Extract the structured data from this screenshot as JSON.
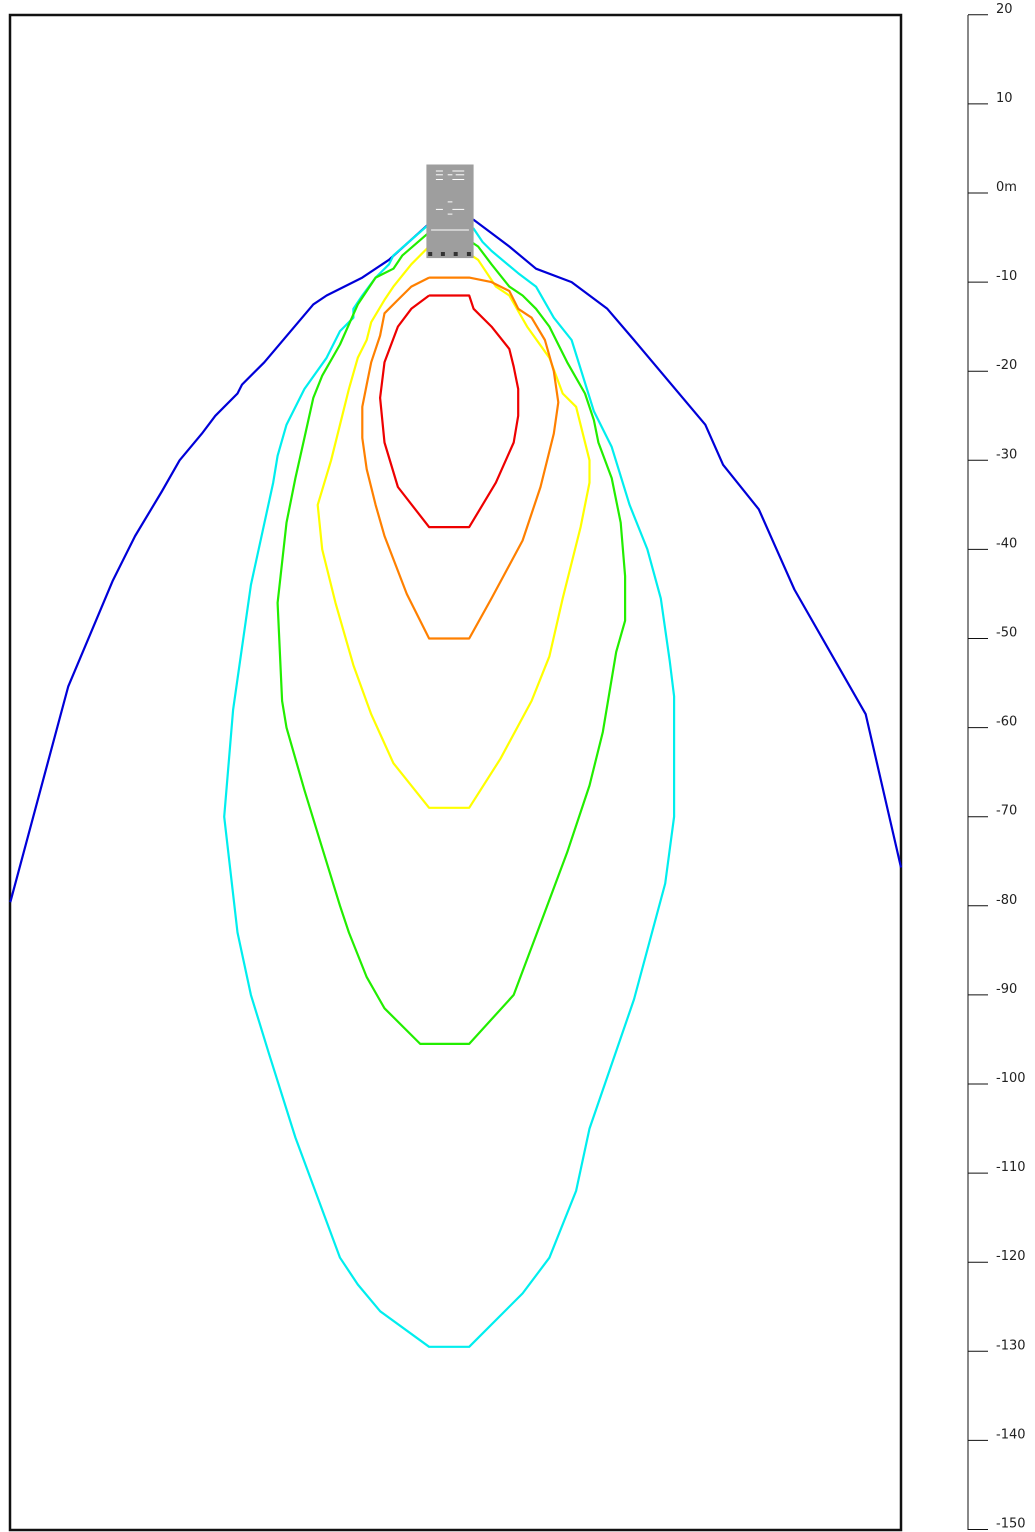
{
  "diagram": {
    "scale": {
      "unit": "m",
      "min": -150,
      "max": 20,
      "step": 10,
      "tick_labels": [
        "20",
        "10",
        "0m",
        "-10",
        "-20",
        "-30",
        "-40",
        "-50",
        "-60",
        "-70",
        "-80",
        "-90",
        "-100",
        "-110",
        "-120",
        "-130",
        "-140",
        "-150"
      ]
    },
    "frame": {
      "x_range_m": [
        -48,
        52
      ],
      "y_range_m": [
        -150,
        18.4
      ]
    },
    "source_icon": {
      "name": "vessel",
      "color": "#9e9e9e",
      "extent_x_m": [
        -1.3,
        4.0
      ],
      "extent_y_m": [
        -7.3,
        3.2
      ]
    },
    "contours": [
      {
        "id": "blue",
        "color": "#0000d8",
        "points_m": [
          [
            -48,
            -79.6
          ],
          [
            -41.5,
            -55.4
          ],
          [
            -36.5,
            -43.5
          ],
          [
            -34,
            -38.5
          ],
          [
            -31,
            -33.5
          ],
          [
            -29,
            -30
          ],
          [
            -26.5,
            -27
          ],
          [
            -25,
            -25
          ],
          [
            -22.5,
            -22.5
          ],
          [
            -22,
            -21.5
          ],
          [
            -19.5,
            -19
          ],
          [
            -14,
            -12.5
          ],
          [
            -12.5,
            -11.5
          ],
          [
            -8.5,
            -9.5
          ],
          [
            -5.5,
            -7.5
          ],
          [
            -0.5,
            -3
          ],
          [
            1.5,
            -3
          ],
          [
            4,
            -3
          ],
          [
            6,
            -4.5
          ],
          [
            8,
            -6
          ],
          [
            11,
            -8.5
          ],
          [
            15,
            -10
          ],
          [
            19,
            -13
          ],
          [
            22,
            -16.5
          ],
          [
            30,
            -26
          ],
          [
            32,
            -30.5
          ],
          [
            36,
            -35.5
          ],
          [
            38,
            -40
          ],
          [
            40,
            -44.5
          ],
          [
            48,
            -58.5
          ],
          [
            52,
            -75.7
          ]
        ]
      },
      {
        "id": "cyan",
        "color": "#00eeee",
        "points_m": [
          [
            -1,
            -3.5
          ],
          [
            -5,
            -7
          ],
          [
            -5.5,
            -8
          ],
          [
            -7,
            -9.5
          ],
          [
            -8.5,
            -11.5
          ],
          [
            -9.5,
            -13
          ],
          [
            -9.5,
            -14
          ],
          [
            -11,
            -15.5
          ],
          [
            -12.5,
            -18.5
          ],
          [
            -15,
            -22
          ],
          [
            -17,
            -26
          ],
          [
            -18,
            -29.5
          ],
          [
            -18.5,
            -32.5
          ],
          [
            -21,
            -44
          ],
          [
            -23,
            -58
          ],
          [
            -24,
            -70
          ],
          [
            -22.5,
            -83
          ],
          [
            -21,
            -90
          ],
          [
            -19,
            -96.5
          ],
          [
            -16,
            -106
          ],
          [
            -11,
            -119.5
          ],
          [
            -9,
            -122.5
          ],
          [
            -6.5,
            -125.5
          ],
          [
            -1,
            -129.5
          ],
          [
            3.5,
            -129.5
          ],
          [
            9.5,
            -123.5
          ],
          [
            12.5,
            -119.5
          ],
          [
            15.5,
            -112
          ],
          [
            17,
            -105
          ],
          [
            22,
            -90.5
          ],
          [
            25.5,
            -77.5
          ],
          [
            26.5,
            -70
          ],
          [
            26.5,
            -56.5
          ],
          [
            26,
            -52.5
          ],
          [
            25,
            -45.5
          ],
          [
            23.5,
            -40
          ],
          [
            21.5,
            -35
          ],
          [
            19.5,
            -28.5
          ],
          [
            17.5,
            -24.5
          ],
          [
            15,
            -16.5
          ],
          [
            13,
            -14
          ],
          [
            11,
            -10.5
          ],
          [
            9,
            -9
          ],
          [
            6,
            -6.5
          ],
          [
            5,
            -5.5
          ],
          [
            4,
            -4
          ],
          [
            1.5,
            -3.5
          ],
          [
            -1,
            -3.5
          ]
        ]
      },
      {
        "id": "green",
        "color": "#22ee00",
        "points_m": [
          [
            -0.5,
            -4
          ],
          [
            -4,
            -7
          ],
          [
            -5,
            -8.5
          ],
          [
            -7,
            -9.5
          ],
          [
            -9,
            -12.5
          ],
          [
            -11,
            -17
          ],
          [
            -13,
            -20.5
          ],
          [
            -14,
            -23
          ],
          [
            -15,
            -27.5
          ],
          [
            -16,
            -32
          ],
          [
            -17,
            -37
          ],
          [
            -18,
            -46
          ],
          [
            -17.5,
            -57
          ],
          [
            -17,
            -60
          ],
          [
            -15,
            -67
          ],
          [
            -13,
            -73.5
          ],
          [
            -11,
            -80
          ],
          [
            -10,
            -83
          ],
          [
            -8,
            -88
          ],
          [
            -6,
            -91.5
          ],
          [
            -2,
            -95.5
          ],
          [
            3.5,
            -95.5
          ],
          [
            8.5,
            -90
          ],
          [
            11.5,
            -82
          ],
          [
            14.5,
            -74
          ],
          [
            17,
            -66.5
          ],
          [
            18.5,
            -60.5
          ],
          [
            20,
            -51.5
          ],
          [
            21,
            -48
          ],
          [
            21,
            -43
          ],
          [
            20.5,
            -37
          ],
          [
            19.5,
            -32
          ],
          [
            18,
            -28
          ],
          [
            17.5,
            -25.5
          ],
          [
            16.5,
            -22.5
          ],
          [
            14.5,
            -19
          ],
          [
            13.5,
            -17
          ],
          [
            12.5,
            -15
          ],
          [
            11,
            -13
          ],
          [
            9.5,
            -11.5
          ],
          [
            8,
            -10.5
          ],
          [
            6,
            -8
          ],
          [
            4.5,
            -6
          ],
          [
            1.5,
            -4
          ],
          [
            -0.5,
            -4
          ]
        ]
      },
      {
        "id": "yellow",
        "color": "#ffff00",
        "points_m": [
          [
            -0.5,
            -5.5
          ],
          [
            -3,
            -8
          ],
          [
            -5,
            -10.5
          ],
          [
            -6,
            -12
          ],
          [
            -7.5,
            -14.5
          ],
          [
            -8,
            -16.5
          ],
          [
            -9,
            -18.5
          ],
          [
            -10,
            -22
          ],
          [
            -11,
            -26
          ],
          [
            -12,
            -30
          ],
          [
            -13.5,
            -35
          ],
          [
            -13,
            -40
          ],
          [
            -11.5,
            -46
          ],
          [
            -9.5,
            -53
          ],
          [
            -7.5,
            -58.5
          ],
          [
            -5,
            -64
          ],
          [
            -1,
            -69
          ],
          [
            3.5,
            -69
          ],
          [
            7,
            -63.5
          ],
          [
            10.5,
            -57
          ],
          [
            12.5,
            -52
          ],
          [
            14,
            -45.5
          ],
          [
            16,
            -37.5
          ],
          [
            17,
            -32.5
          ],
          [
            17,
            -30
          ],
          [
            15.5,
            -24
          ],
          [
            14,
            -22.5
          ],
          [
            12.5,
            -18.5
          ],
          [
            10,
            -15
          ],
          [
            8,
            -11.5
          ],
          [
            6.5,
            -10.5
          ],
          [
            4.5,
            -7.5
          ],
          [
            1.5,
            -5.5
          ],
          [
            -0.5,
            -5.5
          ]
        ]
      },
      {
        "id": "orange",
        "color": "#ff8000",
        "points_m": [
          [
            -1,
            -9.5
          ],
          [
            -3,
            -10.5
          ],
          [
            -4.5,
            -12
          ],
          [
            -6,
            -13.5
          ],
          [
            -6.5,
            -16
          ],
          [
            -7.5,
            -19
          ],
          [
            -8,
            -21.5
          ],
          [
            -8.5,
            -24
          ],
          [
            -8.5,
            -27.5
          ],
          [
            -8,
            -31
          ],
          [
            -7,
            -35
          ],
          [
            -6,
            -38.5
          ],
          [
            -3.5,
            -45
          ],
          [
            -1,
            -50
          ],
          [
            3.5,
            -50
          ],
          [
            6,
            -45.5
          ],
          [
            9.5,
            -39
          ],
          [
            11.5,
            -33
          ],
          [
            13,
            -27
          ],
          [
            13.5,
            -23.5
          ],
          [
            13,
            -20
          ],
          [
            12,
            -16.5
          ],
          [
            10.5,
            -14
          ],
          [
            9,
            -13
          ],
          [
            8,
            -11
          ],
          [
            6,
            -10
          ],
          [
            3.5,
            -9.5
          ],
          [
            -1,
            -9.5
          ]
        ]
      },
      {
        "id": "red",
        "color": "#ee0000",
        "points_m": [
          [
            -1,
            -11.5
          ],
          [
            -3,
            -13
          ],
          [
            -4.5,
            -15
          ],
          [
            -6,
            -19
          ],
          [
            -6.5,
            -23
          ],
          [
            -6,
            -28
          ],
          [
            -4.5,
            -33
          ],
          [
            -1,
            -37.5
          ],
          [
            3.5,
            -37.5
          ],
          [
            6.5,
            -32.5
          ],
          [
            8.5,
            -28
          ],
          [
            9,
            -25
          ],
          [
            9,
            -22
          ],
          [
            8.5,
            -19.5
          ],
          [
            8,
            -17.5
          ],
          [
            6,
            -15
          ],
          [
            4,
            -13
          ],
          [
            3.5,
            -11.5
          ],
          [
            -1,
            -11.5
          ]
        ]
      }
    ]
  }
}
